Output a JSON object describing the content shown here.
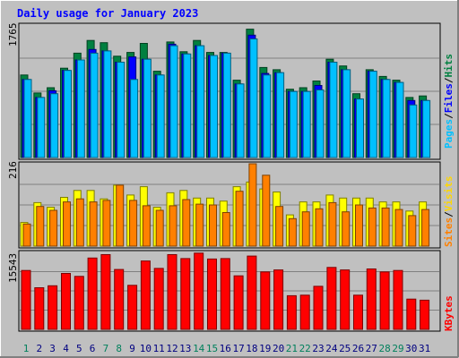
{
  "chart_data": {
    "type": "bar",
    "title": "Daily usage for January 2023",
    "categories": [
      "1",
      "2",
      "3",
      "4",
      "5",
      "6",
      "7",
      "8",
      "9",
      "10",
      "11",
      "12",
      "13",
      "14",
      "15",
      "16",
      "17",
      "18",
      "19",
      "20",
      "21",
      "22",
      "23",
      "24",
      "25",
      "26",
      "27",
      "28",
      "29",
      "30",
      "31"
    ],
    "weekend_days": [
      1,
      7,
      8,
      14,
      15,
      21,
      22,
      28,
      29
    ],
    "panels": [
      {
        "id": "hits",
        "max_label": "1765",
        "ymax": 1765,
        "series": [
          {
            "name": "Hits",
            "color": "#008040",
            "values": [
              1100,
              860,
              930,
              1190,
              1390,
              1560,
              1530,
              1350,
              1400,
              1520,
              1150,
              1540,
              1410,
              1560,
              1400,
              1400,
              1030,
              1710,
              1200,
              1170,
              910,
              930,
              1020,
              1310,
              1220,
              850,
              1170,
              1080,
              1030,
              800,
              820
            ]
          },
          {
            "name": "Files",
            "color": "#0000FF",
            "values": [
              1040,
              800,
              890,
              1160,
              1300,
              1440,
              1420,
              1270,
              1340,
              1310,
              1100,
              1510,
              1380,
              1490,
              1360,
              1390,
              980,
              1630,
              1120,
              1130,
              880,
              880,
              960,
              1270,
              1170,
              780,
              1150,
              1040,
              1000,
              760,
              760
            ]
          },
          {
            "name": "Pages",
            "color": "#00C0FF",
            "values": [
              1040,
              800,
              850,
              1160,
              1300,
              1390,
              1420,
              1270,
              1040,
              1310,
              1100,
              1490,
              1380,
              1490,
              1360,
              1390,
              980,
              1580,
              1100,
              1130,
              880,
              880,
              900,
              1270,
              1170,
              780,
              1150,
              1040,
              1000,
              700,
              760
            ]
          }
        ]
      },
      {
        "id": "visits",
        "max_label": "216",
        "ymax": 216,
        "series": [
          {
            "name": "Visits",
            "color": "#FFFF00",
            "values": [
              62,
              114,
              102,
              128,
              146,
              146,
              124,
              160,
              134,
              156,
              102,
              140,
              146,
              126,
              126,
              118,
              156,
              168,
              150,
              142,
              82,
              116,
              116,
              134,
              126,
              126,
              126,
              116,
              116,
              92,
              116
            ]
          },
          {
            "name": "Sites",
            "color": "#FF8000",
            "values": [
              58,
              104,
              94,
              116,
              124,
              116,
              120,
              160,
              120,
              106,
              94,
              106,
              122,
              110,
              108,
              88,
              144,
              216,
              186,
              104,
              72,
              90,
              98,
              114,
              90,
              108,
              100,
              100,
              96,
              80,
              96
            ]
          }
        ]
      },
      {
        "id": "kbytes",
        "max_label": "15543",
        "ymax": 15543,
        "series": [
          {
            "name": "KBytes",
            "color": "#FF0000",
            "values": [
              11900,
              8400,
              8800,
              11300,
              10700,
              14400,
              15100,
              12100,
              8900,
              13800,
              12300,
              15100,
              14300,
              15400,
              14200,
              14300,
              10800,
              14800,
              11600,
              12000,
              6800,
              6900,
              8700,
              12500,
              12000,
              6900,
              12200,
              11600,
              11900,
              6100,
              5900
            ]
          }
        ]
      }
    ],
    "right_labels": {
      "hits_panel": [
        "Pages",
        "/",
        "Files",
        "/",
        "Hits"
      ],
      "visits_panel": [
        "Sites",
        "/",
        "Visits"
      ],
      "kbytes_panel": [
        "KBytes"
      ]
    },
    "colors": {
      "background": "#C0C0C0",
      "title_text": "#0000FF",
      "weekday_label": "#000080",
      "weekend_label": "#00805C"
    }
  }
}
